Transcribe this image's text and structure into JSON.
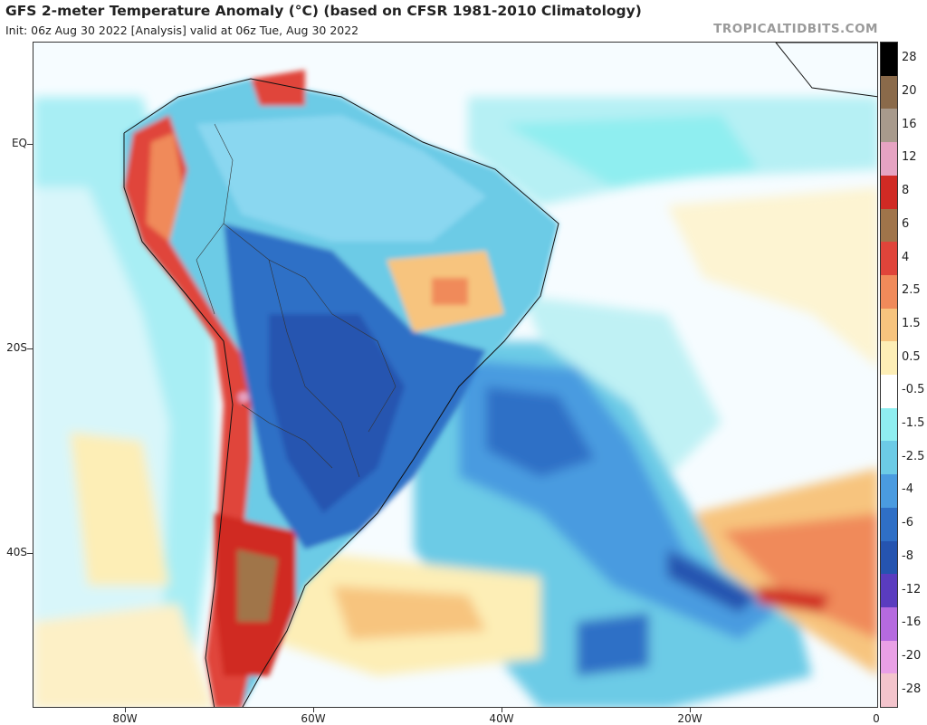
{
  "header": {
    "title": "GFS 2-meter Temperature Anomaly (°C) (based on CFSR 1981-2010 Climatology)",
    "subtitle": "Init: 06z Aug 30 2022   [Analysis]   valid at 06z Tue, Aug 30 2022",
    "credit": "TROPICALTIDBITS.COM"
  },
  "axes": {
    "y_ticks": [
      "EQ",
      "20S",
      "40S"
    ],
    "x_ticks": [
      "80W",
      "60W",
      "40W",
      "20W",
      "0"
    ]
  },
  "colorbar": {
    "levels": [
      {
        "label": "28",
        "color": "#000000"
      },
      {
        "label": "20",
        "color": "#8a6a4a"
      },
      {
        "label": "16",
        "color": "#a89a8c"
      },
      {
        "label": "12",
        "color": "#e6a3c2"
      },
      {
        "label": "8",
        "color": "#d02a24"
      },
      {
        "label": "6",
        "color": "#a0744a"
      },
      {
        "label": "4",
        "color": "#e0443a"
      },
      {
        "label": "2.5",
        "color": "#f08a5a"
      },
      {
        "label": "1.5",
        "color": "#f7c47e"
      },
      {
        "label": "0.5",
        "color": "#fdeeb6"
      },
      {
        "label": "-0.5",
        "color": "#ffffff"
      },
      {
        "label": "-1.5",
        "color": "#8feef0"
      },
      {
        "label": "-2.5",
        "color": "#6ccbe6"
      },
      {
        "label": "-4",
        "color": "#4a9be0"
      },
      {
        "label": "-6",
        "color": "#2f6fc6"
      },
      {
        "label": "-8",
        "color": "#2554b0"
      },
      {
        "label": "-12",
        "color": "#5a3cbf"
      },
      {
        "label": "-16",
        "color": "#b56adf"
      },
      {
        "label": "-20",
        "color": "#e9a0e6"
      },
      {
        "label": "-28",
        "color": "#f3c4cc"
      }
    ]
  },
  "legend_colors": {
    "ocean_neutral": "#ffffff",
    "cold_anomaly": "#2f6fc6",
    "warm_anomaly": "#e0443a"
  }
}
